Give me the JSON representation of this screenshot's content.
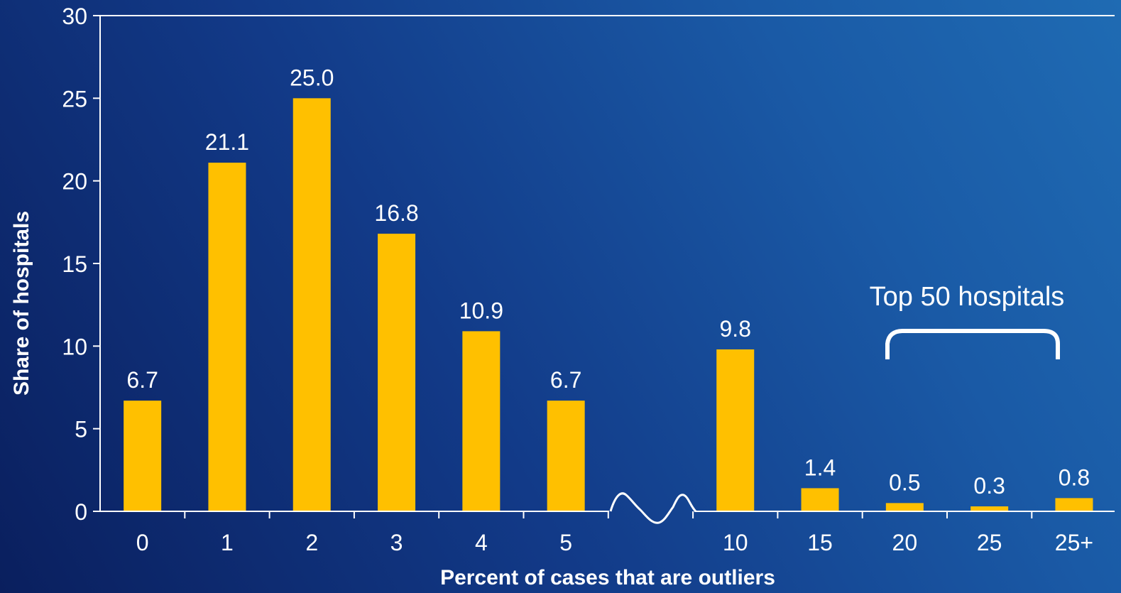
{
  "chart_data": {
    "type": "bar",
    "title": "",
    "xlabel": "Percent of cases that are outliers",
    "ylabel": "Share of hospitals",
    "categories": [
      "0",
      "1",
      "2",
      "3",
      "4",
      "5",
      "",
      "10",
      "15",
      "20",
      "25",
      "25+"
    ],
    "values": [
      6.7,
      21.1,
      25.0,
      16.8,
      10.9,
      6.7,
      null,
      9.8,
      1.4,
      0.5,
      0.3,
      0.8
    ],
    "data_labels": [
      "6.7",
      "21.1",
      "25.0",
      "16.8",
      "10.9",
      "6.7",
      "",
      "9.8",
      "1.4",
      "0.5",
      "0.3",
      "0.8"
    ],
    "ylim": [
      0,
      30
    ],
    "yticks": [
      0,
      5,
      10,
      15,
      20,
      25,
      30
    ],
    "axis_break": "between 5 and 10",
    "grid": false,
    "annotation": "Top 50 hospitals",
    "annotation_spans": [
      "20",
      "25",
      "25+"
    ],
    "colors": {
      "bar": "#FFC000",
      "axis": "#FFFFFF",
      "text": "#FFFFFF"
    }
  }
}
